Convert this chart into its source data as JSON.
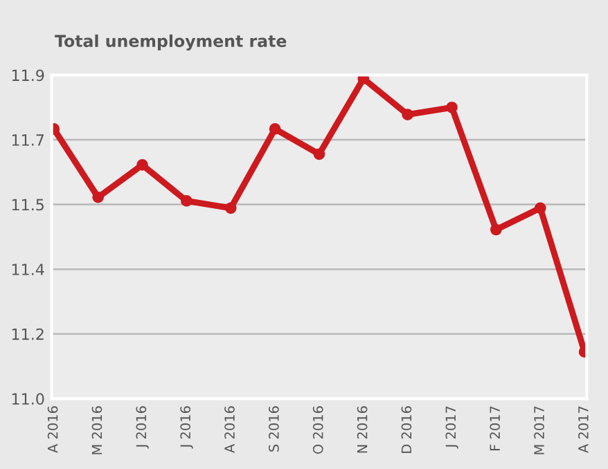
{
  "chart_data": {
    "type": "line",
    "title": "Total unemployment rate",
    "categories": [
      "A 2016",
      "M 2016",
      "J 2016",
      "J 2016",
      "A 2016",
      "S 2016",
      "O 2016",
      "N 2016",
      "D 2016",
      "J 2017",
      "F 2017",
      "M 2017",
      "A 2017"
    ],
    "series": [
      {
        "color": "#cc1a1f",
        "values": [
          11.75,
          11.56,
          11.65,
          11.55,
          11.53,
          11.75,
          11.68,
          11.89,
          11.79,
          11.81,
          11.47,
          11.53,
          11.13
        ]
      }
    ],
    "ylim": [
      11.0,
      11.9
    ],
    "yticks": [
      {
        "value": 11.0,
        "label": "11.0"
      },
      {
        "value": 11.18,
        "label": "11.2"
      },
      {
        "value": 11.36,
        "label": "11.4"
      },
      {
        "value": 11.54,
        "label": "11.5"
      },
      {
        "value": 11.72,
        "label": "11.7"
      },
      {
        "value": 11.9,
        "label": "11.9"
      }
    ],
    "grid": "y",
    "marker": "circle",
    "line_style": "solid"
  }
}
